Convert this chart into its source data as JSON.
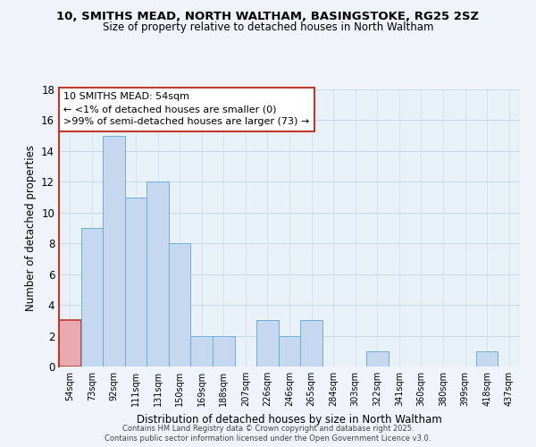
{
  "title1": "10, SMITHS MEAD, NORTH WALTHAM, BASINGSTOKE, RG25 2SZ",
  "title2": "Size of property relative to detached houses in North Waltham",
  "xlabel": "Distribution of detached houses by size in North Waltham",
  "ylabel": "Number of detached properties",
  "categories": [
    "54sqm",
    "73sqm",
    "92sqm",
    "111sqm",
    "131sqm",
    "150sqm",
    "169sqm",
    "188sqm",
    "207sqm",
    "226sqm",
    "246sqm",
    "265sqm",
    "284sqm",
    "303sqm",
    "322sqm",
    "341sqm",
    "360sqm",
    "380sqm",
    "399sqm",
    "418sqm",
    "437sqm"
  ],
  "values": [
    3,
    9,
    15,
    11,
    12,
    8,
    2,
    2,
    0,
    3,
    2,
    3,
    0,
    0,
    1,
    0,
    0,
    0,
    0,
    1,
    0
  ],
  "highlight_index": 0,
  "bar_color": "#c5d8ef",
  "highlight_color": "#e8aab0",
  "bar_edge_color": "#6baed6",
  "highlight_edge_color": "#c0392b",
  "ylim": [
    0,
    18
  ],
  "yticks": [
    0,
    2,
    4,
    6,
    8,
    10,
    12,
    14,
    16,
    18
  ],
  "annotation_title": "10 SMITHS MEAD: 54sqm",
  "annotation_line1": "← <1% of detached houses are smaller (0)",
  "annotation_line2": ">99% of semi-detached houses are larger (73) →",
  "footer1": "Contains HM Land Registry data © Crown copyright and database right 2025.",
  "footer2": "Contains public sector information licensed under the Open Government Licence v3.0.",
  "background_color": "#f0f4fa",
  "plot_bg_color": "#e8f0f8"
}
